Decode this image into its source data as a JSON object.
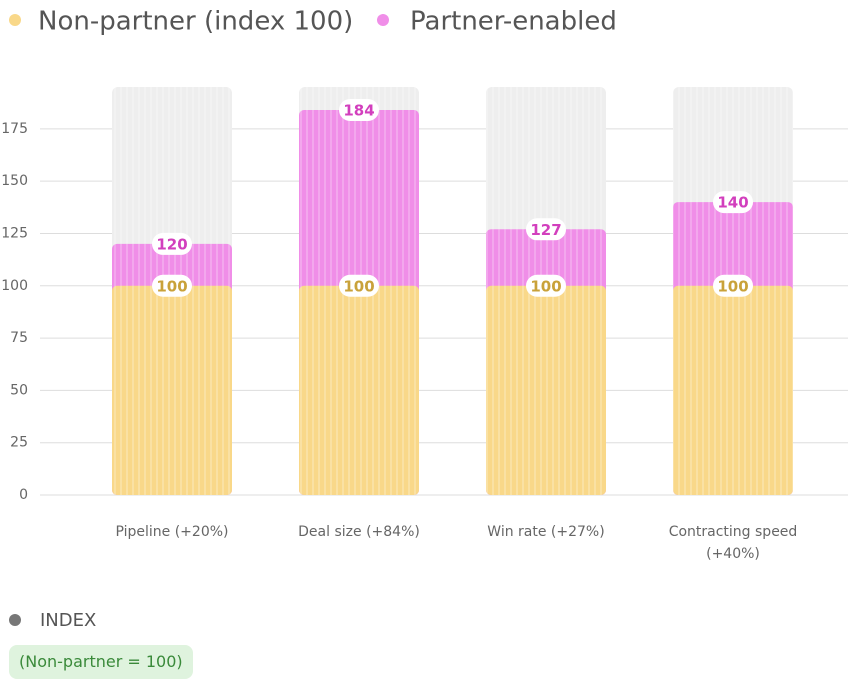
{
  "chart_data": {
    "type": "bar",
    "categories": [
      "Pipeline (+20%)",
      "Deal size (+84%)",
      "Win rate (+27%)",
      "Contracting speed (+40%)"
    ],
    "series": [
      {
        "name": "Non-partner (index 100)",
        "color": "#f9d889",
        "label_color": "#c9a23a",
        "values": [
          100,
          100,
          100,
          100
        ]
      },
      {
        "name": "Partner-enabled",
        "color": "#f08ee8",
        "label_color": "#d23fbd",
        "values": [
          120,
          184,
          127,
          140
        ]
      }
    ],
    "ylim": [
      0,
      195
    ],
    "yticks": [
      0,
      25,
      50,
      75,
      100,
      125,
      150,
      175
    ],
    "grid": true
  },
  "index": {
    "title": "INDEX",
    "note": "(Non-partner = 100)"
  }
}
